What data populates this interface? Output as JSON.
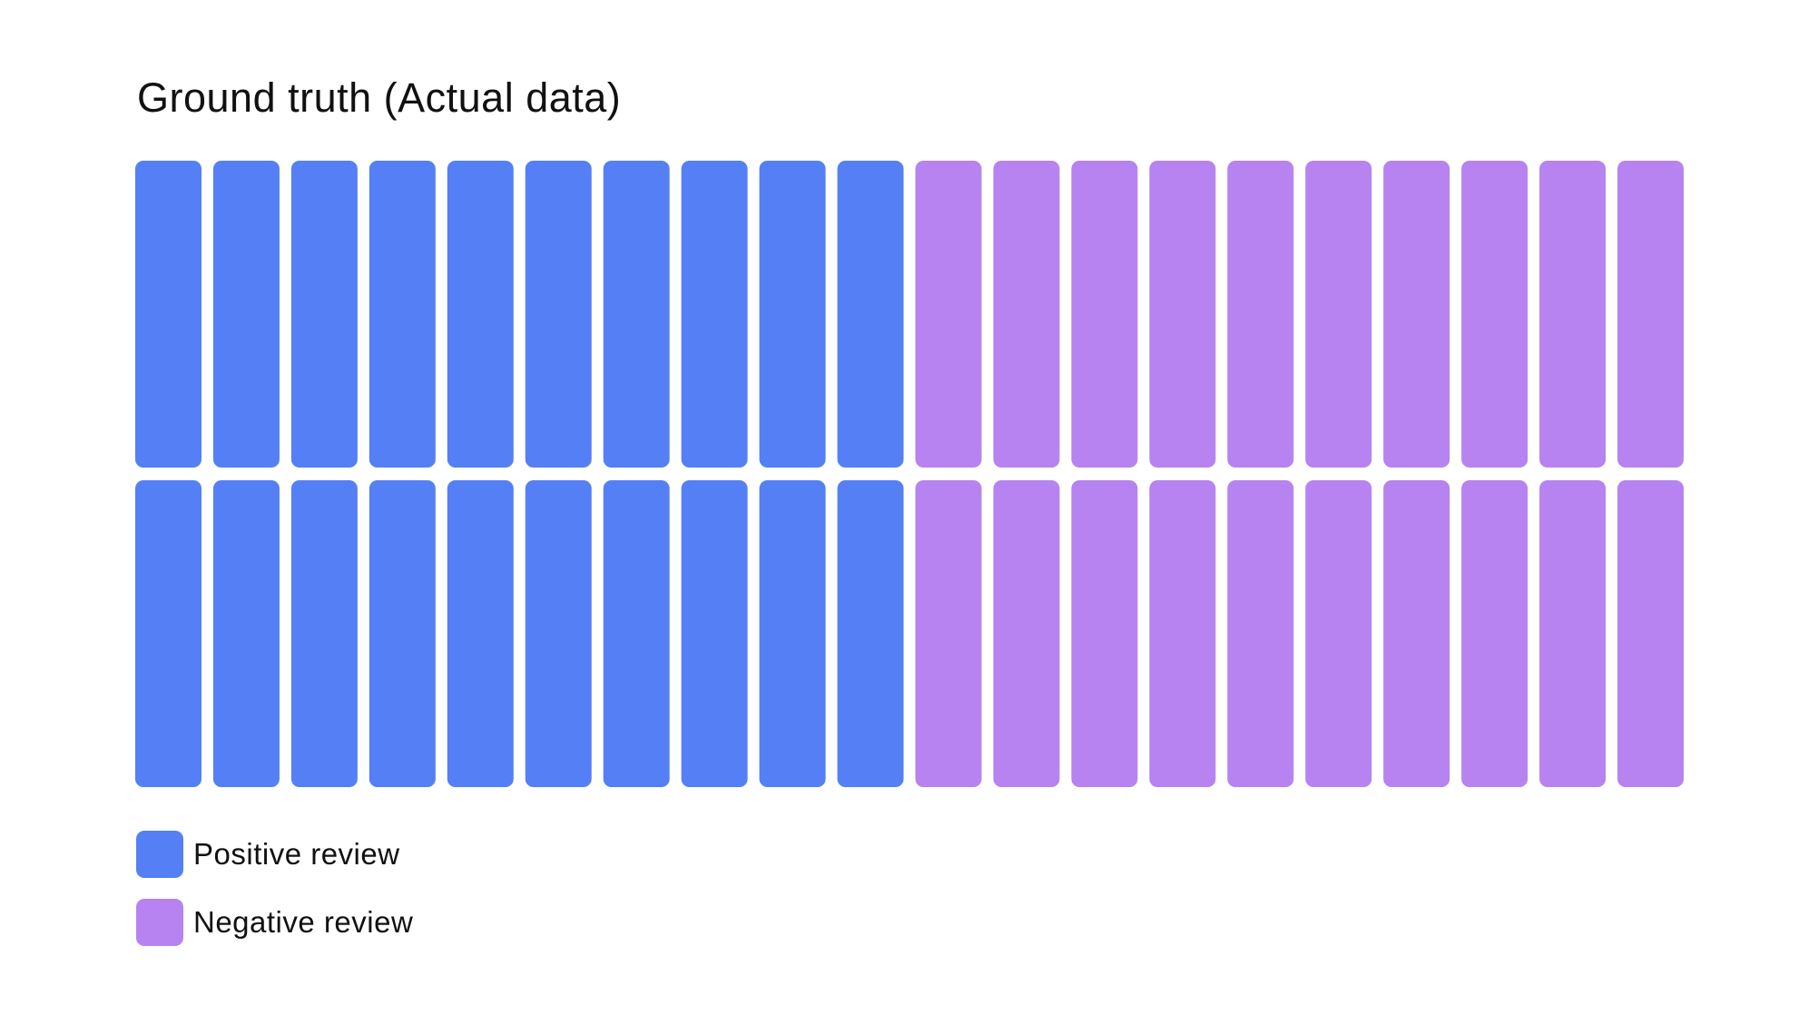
{
  "chart_data": {
    "type": "waffle",
    "title": "Ground truth (Actual data)",
    "rows": 2,
    "columns": 20,
    "categories": [
      {
        "name": "Positive review",
        "count": 20,
        "color": "#557ff5"
      },
      {
        "name": "Negative review",
        "count": 20,
        "color": "#b683f1"
      }
    ],
    "cells": [
      [
        "Positive review",
        "Positive review",
        "Positive review",
        "Positive review",
        "Positive review",
        "Positive review",
        "Positive review",
        "Positive review",
        "Positive review",
        "Positive review",
        "Negative review",
        "Negative review",
        "Negative review",
        "Negative review",
        "Negative review",
        "Negative review",
        "Negative review",
        "Negative review",
        "Negative review",
        "Negative review"
      ],
      [
        "Positive review",
        "Positive review",
        "Positive review",
        "Positive review",
        "Positive review",
        "Positive review",
        "Positive review",
        "Positive review",
        "Positive review",
        "Positive review",
        "Negative review",
        "Negative review",
        "Negative review",
        "Negative review",
        "Negative review",
        "Negative review",
        "Negative review",
        "Negative review",
        "Negative review",
        "Negative review"
      ]
    ],
    "legend_position": "bottom-left"
  }
}
